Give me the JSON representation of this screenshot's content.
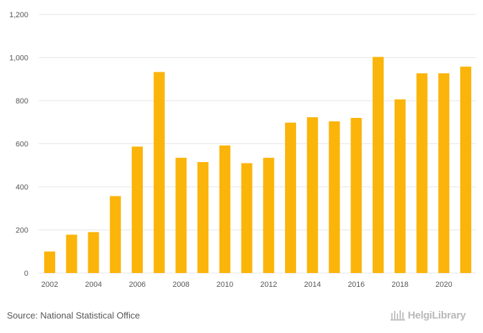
{
  "chart_data": {
    "type": "bar",
    "title": "",
    "xlabel": "",
    "ylabel": "",
    "categories": [
      "2002",
      "2003",
      "2004",
      "2005",
      "2006",
      "2007",
      "2008",
      "2009",
      "2010",
      "2011",
      "2012",
      "2013",
      "2014",
      "2015",
      "2016",
      "2017",
      "2018",
      "2019",
      "2020",
      "2021"
    ],
    "x_tick_labels": [
      "2002",
      "2004",
      "2006",
      "2008",
      "2010",
      "2012",
      "2014",
      "2016",
      "2018",
      "2020"
    ],
    "values": [
      100,
      178,
      190,
      357,
      587,
      933,
      535,
      515,
      592,
      510,
      535,
      698,
      723,
      704,
      720,
      1003,
      806,
      927,
      927,
      958
    ],
    "ylim": [
      0,
      1200
    ],
    "y_ticks": [
      0,
      200,
      400,
      600,
      800,
      1000,
      1200
    ],
    "y_tick_labels": [
      "0",
      "200",
      "400",
      "600",
      "800",
      "1,000",
      "1,200"
    ],
    "grid": true,
    "bar_color": "#fbb40a",
    "grid_color": "#e6e6e6"
  },
  "footer": {
    "source": "Source: National Statistical Office",
    "logo_text": "HelgiLibrary",
    "logo_icon": "helgi-library-logo-icon"
  }
}
